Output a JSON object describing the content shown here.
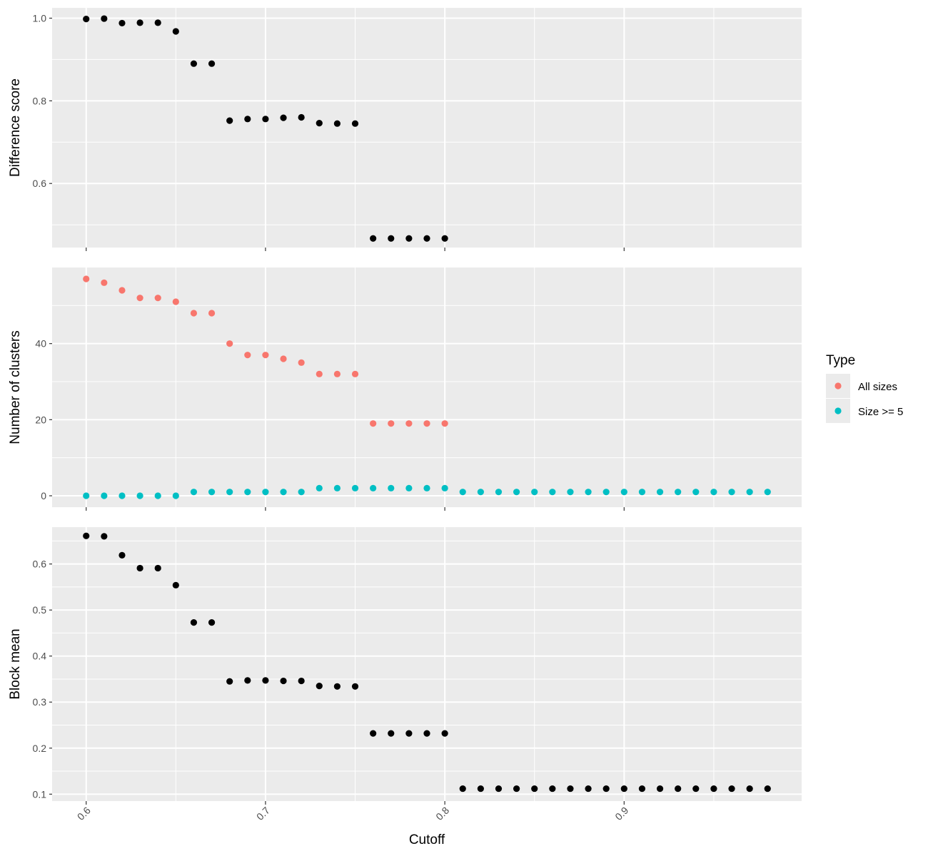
{
  "chart_data": {
    "type": "scatter",
    "layout": "faceted-3-panels-shared-x",
    "xlabel": "Cutoff",
    "x_ticks": [
      0.6,
      0.7,
      0.8,
      0.9
    ],
    "x_tick_labels": [
      "0.6",
      "0.7",
      "0.8",
      "0.9"
    ],
    "xlim": [
      0.581,
      0.999
    ],
    "x": [
      0.6,
      0.61,
      0.62,
      0.63,
      0.64,
      0.65,
      0.66,
      0.67,
      0.68,
      0.69,
      0.7,
      0.71,
      0.72,
      0.73,
      0.74,
      0.75,
      0.76,
      0.77,
      0.78,
      0.79,
      0.8,
      0.81,
      0.82,
      0.83,
      0.84,
      0.85,
      0.86,
      0.87,
      0.88,
      0.89,
      0.9,
      0.91,
      0.92,
      0.93,
      0.94,
      0.95,
      0.96,
      0.97,
      0.98
    ],
    "legend": {
      "title": "Type",
      "position": "right"
    },
    "panels": [
      {
        "ylabel": "Difference score",
        "ylim": [
          0.445,
          1.025
        ],
        "y_ticks": [
          0.6,
          0.8,
          1.0
        ],
        "y_tick_labels": [
          "0.6",
          "0.8",
          "1.0"
        ],
        "series": [
          {
            "color": "#000000",
            "values": [
              0.998,
              0.999,
              0.988,
              0.989,
              0.989,
              0.968,
              0.89,
              0.89,
              0.752,
              0.756,
              0.756,
              0.759,
              0.76,
              0.746,
              0.745,
              0.745,
              0.467,
              0.467,
              0.467,
              0.467,
              0.467,
              null,
              null,
              null,
              null,
              null,
              null,
              null,
              null,
              null,
              null,
              null,
              null,
              null,
              null,
              null,
              null,
              null,
              null
            ]
          }
        ]
      },
      {
        "ylabel": "Number of clusters",
        "ylim": [
          -3,
          60
        ],
        "y_ticks": [
          0,
          20,
          40
        ],
        "y_tick_labels": [
          "0",
          "20",
          "40"
        ],
        "series": [
          {
            "name": "All sizes",
            "color": "#F8766D",
            "values": [
              57,
              56,
              54,
              52,
              52,
              51,
              48,
              48,
              40,
              37,
              37,
              36,
              35,
              32,
              32,
              32,
              19,
              19,
              19,
              19,
              19,
              null,
              null,
              null,
              null,
              null,
              null,
              null,
              null,
              null,
              null,
              null,
              null,
              null,
              null,
              null,
              null,
              null,
              null
            ]
          },
          {
            "name": "Size >= 5",
            "color": "#00BFC4",
            "values": [
              0,
              0,
              0,
              0,
              0,
              0,
              1,
              1,
              1,
              1,
              1,
              1,
              1,
              2,
              2,
              2,
              2,
              2,
              2,
              2,
              2,
              1,
              1,
              1,
              1,
              1,
              1,
              1,
              1,
              1,
              1,
              1,
              1,
              1,
              1,
              1,
              1,
              1,
              1
            ]
          }
        ]
      },
      {
        "ylabel": "Block mean",
        "ylim": [
          0.085,
          0.68
        ],
        "y_ticks": [
          0.1,
          0.2,
          0.3,
          0.4,
          0.5,
          0.6
        ],
        "y_tick_labels": [
          "0.1",
          "0.2",
          "0.3",
          "0.4",
          "0.5",
          "0.6"
        ],
        "series": [
          {
            "color": "#000000",
            "values": [
              0.661,
              0.66,
              0.619,
              0.591,
              0.591,
              0.554,
              0.473,
              0.473,
              0.345,
              0.347,
              0.347,
              0.346,
              0.346,
              0.335,
              0.334,
              0.334,
              0.232,
              0.232,
              0.232,
              0.232,
              0.232,
              0.112,
              0.112,
              0.112,
              0.112,
              0.112,
              0.112,
              0.112,
              0.112,
              0.112,
              0.112,
              0.112,
              0.112,
              0.112,
              0.112,
              0.112,
              0.112,
              0.112,
              0.112
            ]
          }
        ]
      }
    ]
  }
}
